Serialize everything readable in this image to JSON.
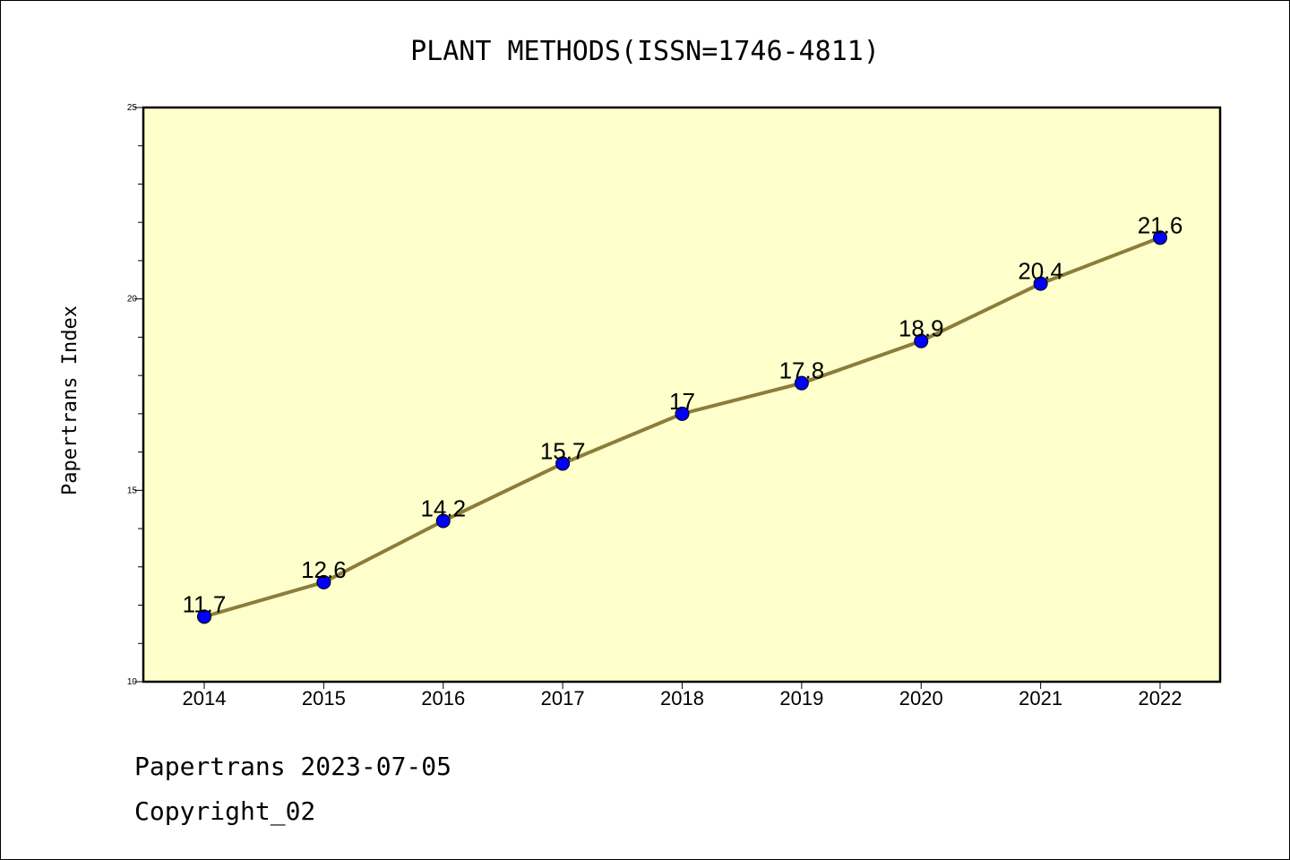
{
  "chart_data": {
    "type": "line",
    "title": "PLANT METHODS(ISSN=1746-4811)",
    "xlabel": "",
    "ylabel": "Papertrans Index",
    "categories": [
      "2014",
      "2015",
      "2016",
      "2017",
      "2018",
      "2019",
      "2020",
      "2021",
      "2022"
    ],
    "series": [
      {
        "values": [
          11.7,
          12.6,
          14.2,
          15.7,
          17,
          17.8,
          18.9,
          20.4,
          21.6
        ],
        "labels": [
          "11.7",
          "12.6",
          "14.2",
          "15.7",
          "17",
          "17.8",
          "18.9",
          "20.4",
          "21.6"
        ]
      }
    ],
    "ylim": [
      10,
      25
    ],
    "yticks": [
      10,
      15,
      20,
      25
    ],
    "ytick_labels": [
      "10",
      "15",
      "20",
      "25"
    ],
    "grid": false,
    "legend": "none",
    "colors": {
      "plot_background": "#ffffcc",
      "line": "#8b7d3a",
      "marker": "#0000ff"
    }
  },
  "footer": {
    "line1": "Papertrans 2023-07-05",
    "line2": "Copyright_02"
  }
}
